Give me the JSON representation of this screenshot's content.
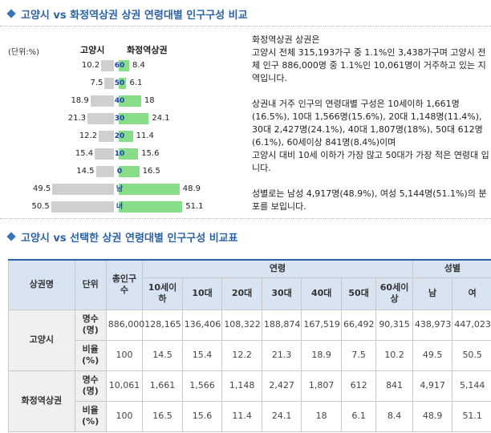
{
  "section1": {
    "title": "고양시 vs 화정역상권 상권 연령대별 인구구성 비교"
  },
  "section2": {
    "title": "고양시 vs 선택한 상권 연령대별 인구구성 비교표"
  },
  "pyramid": {
    "unit": "(단위:%)",
    "left_label": "고양시",
    "right_label": "화정역상권",
    "rows": [
      {
        "age": "60",
        "left": "10.2",
        "right": "8.4",
        "lv": 10.2,
        "rv": 8.4
      },
      {
        "age": "50",
        "left": "7.5",
        "right": "6.1",
        "lv": 7.5,
        "rv": 6.1
      },
      {
        "age": "40",
        "left": "18.9",
        "right": "18",
        "lv": 18.9,
        "rv": 18
      },
      {
        "age": "30",
        "left": "21.3",
        "right": "24.1",
        "lv": 21.3,
        "rv": 24.1
      },
      {
        "age": "20",
        "left": "12.2",
        "right": "11.4",
        "lv": 12.2,
        "rv": 11.4
      },
      {
        "age": "10",
        "left": "15.4",
        "right": "15.6",
        "lv": 15.4,
        "rv": 15.6
      },
      {
        "age": "0",
        "left": "14.5",
        "right": "16.5",
        "lv": 14.5,
        "rv": 16.5
      },
      {
        "age": "남",
        "left": "49.5",
        "right": "48.9",
        "lv": 49.5,
        "rv": 48.9
      },
      {
        "age": "녀",
        "left": "50.5",
        "right": "51.1",
        "lv": 50.5,
        "rv": 51.1
      }
    ]
  },
  "description": {
    "p1": "화정역상권 상권은",
    "p2": "고양시 전체 315,193가구 중 1.1%인 3,438가구며 고양시 전체 인구 886,000명 중 1.1%인 10,061명이 거주하고 있는 지역입니다.",
    "p3": "상권내 거주 인구의 연령대별 구성은 10세이하 1,661명(16.5%), 10대 1,566명(15.6%), 20대 1,148명(11.4%), 30대 2,427명(24.1%), 40대 1,807명(18%), 50대 612명(6.1%), 60세이상 841명(8.4%)이며",
    "p4": "고양시 대비 10세 이하가 가장 많고 50대가 가장 적은 연령대 입니다.",
    "p5": "성별로는 남성 4,917명(48.9%), 여성 5,144명(51.1%)의 분포를 보입니다."
  },
  "table": {
    "h_region": "상권명",
    "h_unit": "단위",
    "h_total": "총인구수",
    "h_age": "연령",
    "h_gender": "성별",
    "age_cols": [
      "10세이하",
      "10대",
      "20대",
      "30대",
      "40대",
      "50대",
      "60세이상"
    ],
    "gender_cols": [
      "남",
      "여"
    ],
    "rows": [
      {
        "region": "고양시",
        "unit_count": "명수(명)",
        "unit_ratio": "비율(%)",
        "counts": [
          "886,000",
          "128,165",
          "136,406",
          "108,322",
          "188,874",
          "167,519",
          "66,492",
          "90,315",
          "438,973",
          "447,023"
        ],
        "ratios": [
          "100",
          "14.5",
          "15.4",
          "12.2",
          "21.3",
          "18.9",
          "7.5",
          "10.2",
          "49.5",
          "50.5"
        ]
      },
      {
        "region": "화정역상권",
        "unit_count": "명수(명)",
        "unit_ratio": "비율(%)",
        "counts": [
          "10,061",
          "1,661",
          "1,566",
          "1,148",
          "2,427",
          "1,807",
          "612",
          "841",
          "4,917",
          "5,144"
        ],
        "ratios": [
          "100",
          "16.5",
          "15.6",
          "11.4",
          "24.1",
          "18",
          "6.1",
          "8.4",
          "48.9",
          "51.1"
        ]
      }
    ]
  }
}
